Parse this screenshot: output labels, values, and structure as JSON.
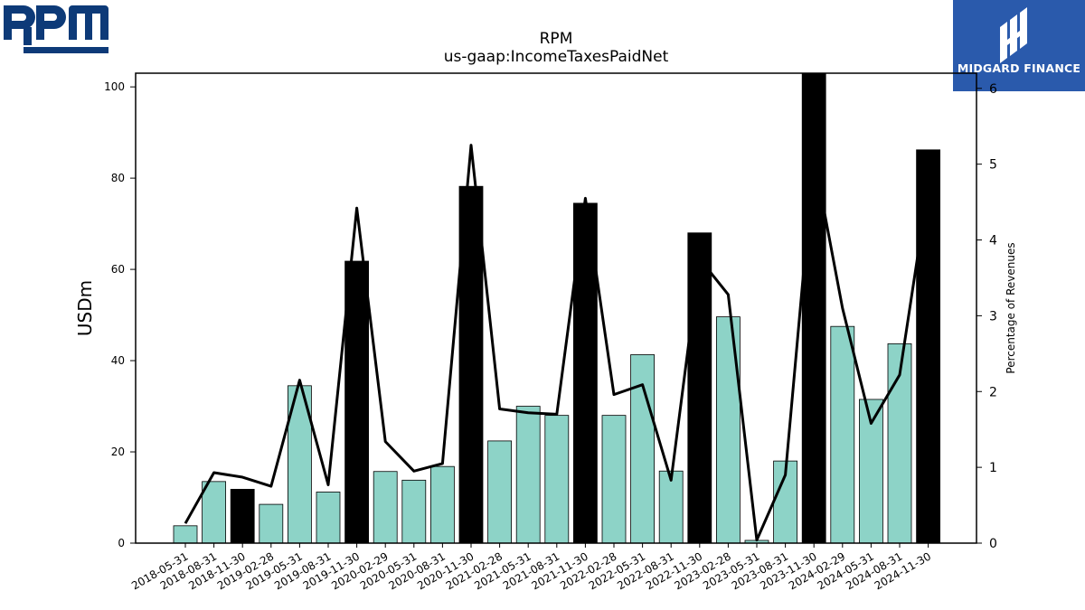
{
  "branding": {
    "company_logo_text": "RPM",
    "partner_logo_text": "MIDGARD FINANCE"
  },
  "colors": {
    "bar_default": "#8dd3c7",
    "bar_highlight": "#000000",
    "line": "#000000",
    "logo_rpm": "#0d3a78",
    "logo_midgard_bg": "#2a5aac"
  },
  "chart_data": {
    "type": "bar",
    "title": "RPM",
    "subtitle": "us-gaap:IncomeTaxesPaidNet",
    "ylabel": "USDm",
    "y2label": "Percentage of Revenues",
    "ylim": [
      0,
      103
    ],
    "y2lim": [
      0,
      6.2
    ],
    "yticks": [
      0,
      20,
      40,
      60,
      80,
      100
    ],
    "y2ticks": [
      0,
      1,
      2,
      3,
      4,
      5,
      6
    ],
    "categories": [
      "2018-05-31",
      "2018-08-31",
      "2018-11-30",
      "2019-02-28",
      "2019-05-31",
      "2019-08-31",
      "2019-11-30",
      "2020-02-29",
      "2020-05-31",
      "2020-08-31",
      "2020-11-30",
      "2021-02-28",
      "2021-05-31",
      "2021-08-31",
      "2021-11-30",
      "2022-02-28",
      "2022-05-31",
      "2022-08-31",
      "2022-11-30",
      "2023-02-28",
      "2023-05-31",
      "2023-08-31",
      "2023-11-30",
      "2024-02-29",
      "2024-05-31",
      "2024-08-31",
      "2024-11-30"
    ],
    "series": [
      {
        "type": "bar",
        "axis": "left",
        "values": [
          3.8,
          13.5,
          11.8,
          8.5,
          34.5,
          11.2,
          61.8,
          15.7,
          13.8,
          16.8,
          78.2,
          22.4,
          30.0,
          28.0,
          74.5,
          28.0,
          41.3,
          15.8,
          68.0,
          49.6,
          0.6,
          18.0,
          103.5,
          47.5,
          31.5,
          43.7,
          86.2
        ],
        "highlight": [
          false,
          false,
          true,
          false,
          false,
          false,
          true,
          false,
          false,
          false,
          true,
          false,
          false,
          false,
          true,
          false,
          false,
          false,
          true,
          false,
          false,
          false,
          true,
          false,
          false,
          false,
          true
        ]
      },
      {
        "type": "line",
        "axis": "right",
        "values": [
          0.26,
          0.93,
          0.87,
          0.75,
          2.15,
          0.77,
          4.42,
          1.34,
          0.95,
          1.05,
          5.25,
          1.77,
          1.72,
          1.7,
          4.55,
          1.96,
          2.09,
          0.83,
          3.75,
          3.28,
          0.04,
          0.9,
          5.1,
          3.1,
          1.58,
          2.22,
          4.7
        ]
      }
    ],
    "grid": false,
    "legend": "none"
  }
}
